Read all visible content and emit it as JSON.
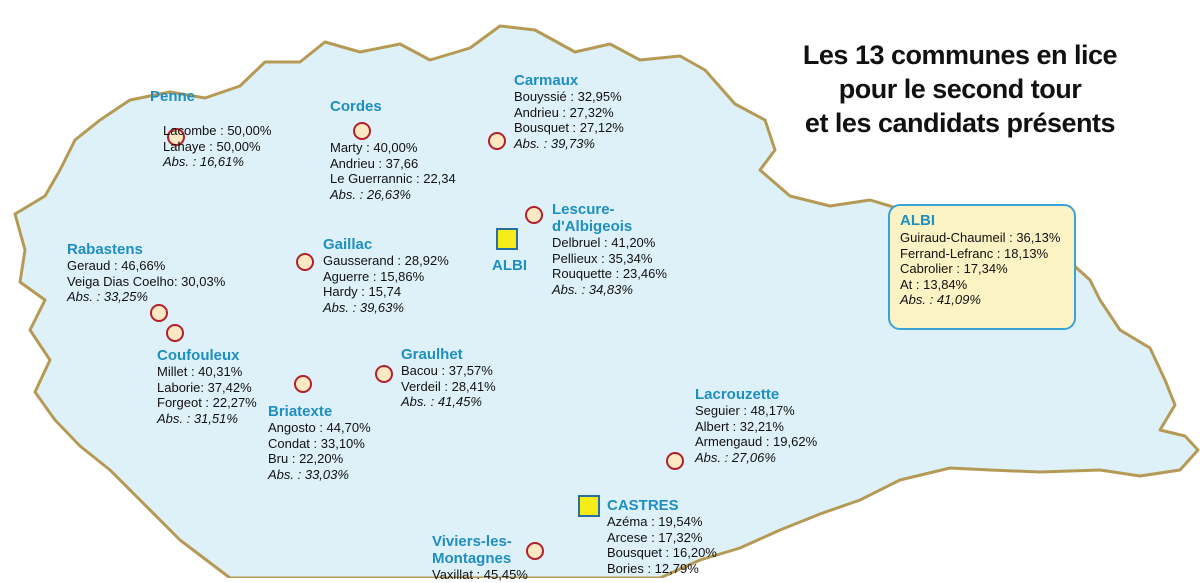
{
  "title": [
    "Les 13 communes en lice",
    "pour le second tour",
    "et les candidats présents"
  ],
  "colors": {
    "land": "#dff1f8",
    "border": "#b59a55",
    "accent": "#1d8fc0",
    "marker": "#b3202a",
    "box": "#fbf3c4"
  },
  "communes": [
    {
      "name": [
        "Penne"
      ],
      "results": [
        "Lacombe : 50,00%",
        "Lahaye : 50,00%"
      ],
      "abs": "Abs. : 16,61%"
    },
    {
      "name": [
        "Cordes"
      ],
      "results": [
        "Marty : 40,00%",
        "Andrieu : 37,66",
        "Le Guerrannic : 22,34"
      ],
      "abs": "Abs. : 26,63%"
    },
    {
      "name": [
        "Carmaux"
      ],
      "results": [
        "Bouyssié : 32,95%",
        "Andrieu : 27,32%",
        "Bousquet : 27,12%"
      ],
      "abs": "Abs. : 39,73%"
    },
    {
      "name": [
        "Lescure-",
        "d'Albigeois"
      ],
      "results": [
        "Delbruel : 41,20%",
        "Pellieux : 35,34%",
        "Rouquette : 23,46%"
      ],
      "abs": "Abs. : 34,83%"
    },
    {
      "name": [
        "Rabastens"
      ],
      "results": [
        "Geraud : 46,66%",
        "Veiga Dias Coelho: 30,03%"
      ],
      "abs": "Abs. : 33,25%"
    },
    {
      "name": [
        "Gaillac"
      ],
      "results": [
        "Gausserand : 28,92%",
        "Aguerre : 15,86%",
        "Hardy : 15,74"
      ],
      "abs": "Abs. : 39,63%"
    },
    {
      "name": [
        "Coufouleux"
      ],
      "results": [
        "Millet : 40,31%",
        "Laborie: 37,42%",
        "Forgeot : 22,27%"
      ],
      "abs": "Abs. : 31,51%"
    },
    {
      "name": [
        "Graulhet"
      ],
      "results": [
        "Bacou : 37,57%",
        "Verdeil : 28,41%"
      ],
      "abs": "Abs. : 41,45%"
    },
    {
      "name": [
        "Briatexte"
      ],
      "results": [
        "Angosto : 44,70%",
        "Condat : 33,10%",
        "Bru : 22,20%"
      ],
      "abs": "Abs. : 33,03%"
    },
    {
      "name": [
        "Lacrouzette"
      ],
      "results": [
        "Seguier : 48,17%",
        "Albert : 32,21%",
        "Armengaud : 19,62%"
      ],
      "abs": "Abs. : 27,06%"
    },
    {
      "name": [
        "CASTRES"
      ],
      "results": [
        "Azéma : 19,54%",
        "Arcese : 17,32%",
        "Bousquet : 16,20%",
        "Bories : 12,79%"
      ],
      "abs": ""
    },
    {
      "name": [
        "Viviers-les-",
        "Montagnes"
      ],
      "results": [
        "Vaxillat : 45,45%"
      ],
      "abs": ""
    }
  ],
  "albi_label": "ALBI",
  "albi_box": {
    "name": "ALBI",
    "results": [
      "Guiraud-Chaumeil : 36,13%",
      "Ferrand-Lefranc : 18,13%",
      "Cabrolier : 17,34%",
      "At : 13,84%"
    ],
    "abs": "Abs. : 41,09%"
  }
}
